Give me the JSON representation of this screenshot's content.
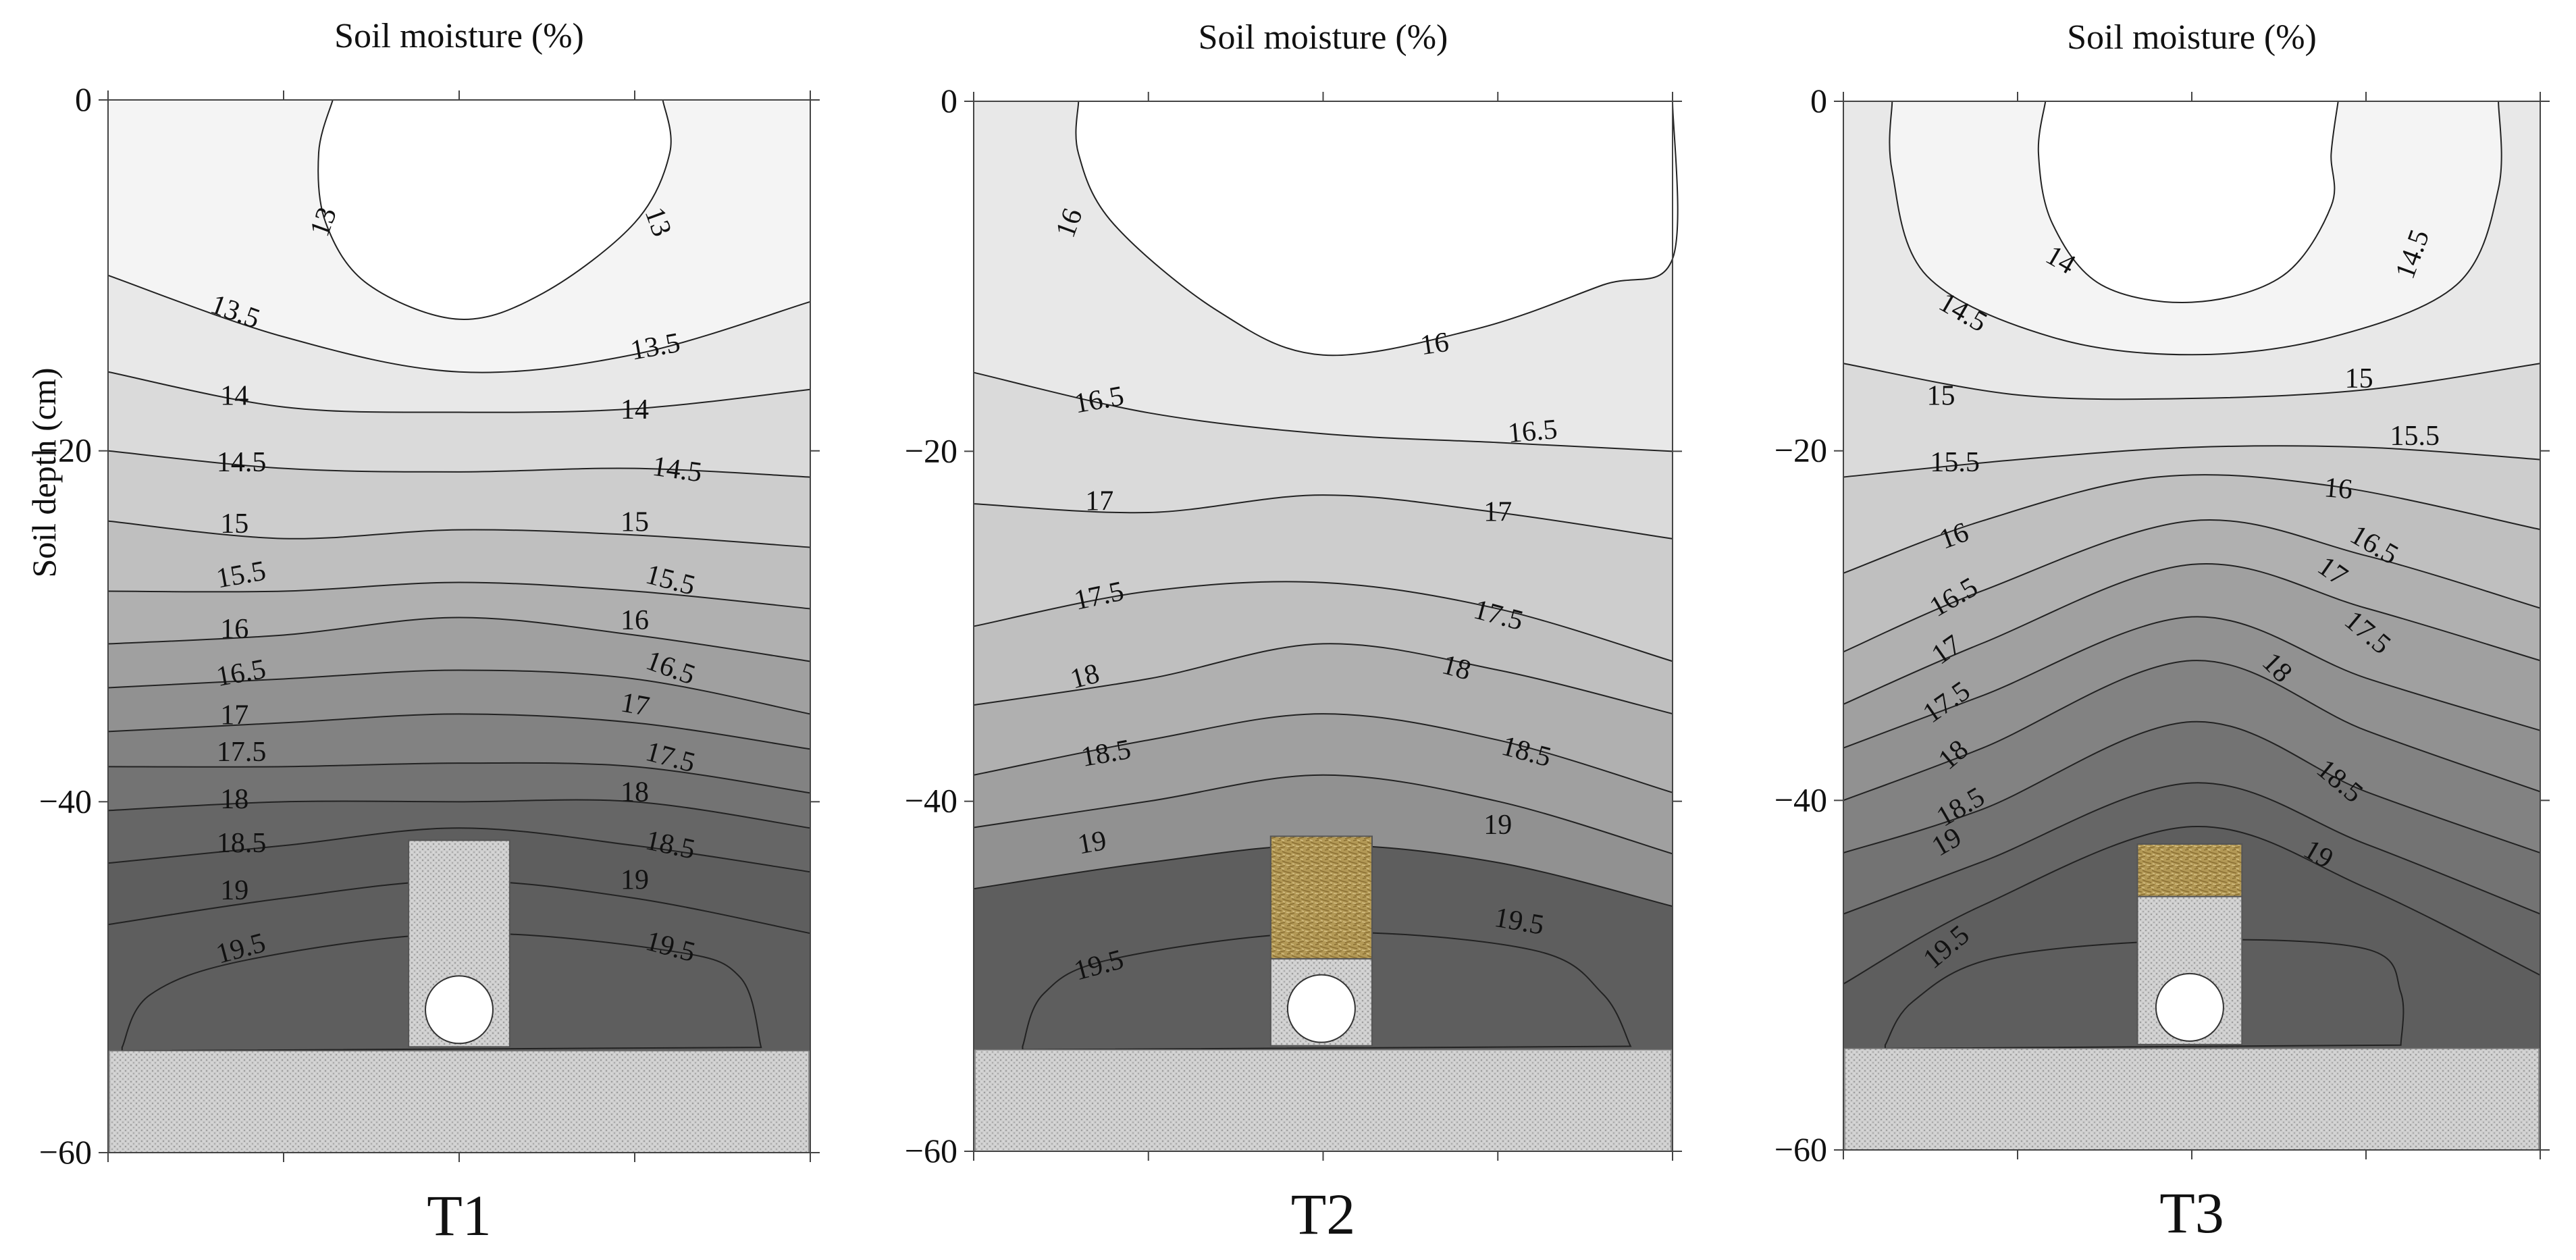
{
  "figure": {
    "ylabel": "Soil depth (cm)",
    "xlabel_top": "Soil moisture (%)",
    "yticks": [
      0,
      -20,
      -40,
      -60
    ],
    "ylim": [
      -60,
      0
    ]
  },
  "chart_data": [
    {
      "type": "contour",
      "panel": "T1",
      "title": "Soil moisture (%)",
      "xlabel": "T1",
      "ylabel": "Soil depth (cm)",
      "ylim": [
        -60,
        0
      ],
      "levels": [
        13,
        13.5,
        14,
        14.5,
        15,
        15.5,
        16,
        16.5,
        17,
        17.5,
        18,
        18.5,
        19,
        19.5
      ],
      "contour_labels": [
        {
          "text": "13"
        },
        {
          "text": "13"
        },
        {
          "text": "13.5"
        },
        {
          "text": "13.5"
        },
        {
          "text": "14"
        },
        {
          "text": "14"
        },
        {
          "text": "14.5"
        },
        {
          "text": "14.5"
        },
        {
          "text": "15"
        },
        {
          "text": "15"
        },
        {
          "text": "15.5"
        },
        {
          "text": "15.5"
        },
        {
          "text": "16"
        },
        {
          "text": "16"
        },
        {
          "text": "16.5"
        },
        {
          "text": "16.5"
        },
        {
          "text": "17"
        },
        {
          "text": "17"
        },
        {
          "text": "17.5"
        },
        {
          "text": "17.5"
        },
        {
          "text": "18"
        },
        {
          "text": "18"
        },
        {
          "text": "18.5"
        },
        {
          "text": "18.5"
        },
        {
          "text": "19"
        },
        {
          "text": "19"
        },
        {
          "text": "19.5"
        },
        {
          "text": "19.5"
        }
      ],
      "layer_description": "Gravel trench only"
    },
    {
      "type": "contour",
      "panel": "T2",
      "title": "Soil moisture (%)",
      "xlabel": "T2",
      "ylabel": "",
      "ylim": [
        -60,
        0
      ],
      "levels": [
        16,
        16.5,
        17,
        17.5,
        18,
        18.5,
        19,
        19.5
      ],
      "contour_labels": [
        {
          "text": "16"
        },
        {
          "text": "16"
        },
        {
          "text": "16.5"
        },
        {
          "text": "16.5"
        },
        {
          "text": "17"
        },
        {
          "text": "17"
        },
        {
          "text": "17.5"
        },
        {
          "text": "17.5"
        },
        {
          "text": "18"
        },
        {
          "text": "18"
        },
        {
          "text": "18.5"
        },
        {
          "text": "18.5"
        },
        {
          "text": "19"
        },
        {
          "text": "19"
        },
        {
          "text": "19.5"
        },
        {
          "text": "19.5"
        }
      ],
      "layer_description": "Straw layer over gravel trench"
    },
    {
      "type": "contour",
      "panel": "T3",
      "title": "Soil moisture (%)",
      "xlabel": "T3",
      "ylabel": "",
      "ylim": [
        -60,
        0
      ],
      "levels": [
        14,
        14.5,
        15,
        15.5,
        16,
        16.5,
        17,
        17.5,
        18,
        18.5,
        19,
        19.5
      ],
      "contour_labels": [
        {
          "text": "14"
        },
        {
          "text": "14.5"
        },
        {
          "text": "14.5"
        },
        {
          "text": "15"
        },
        {
          "text": "15"
        },
        {
          "text": "15.5"
        },
        {
          "text": "15.5"
        },
        {
          "text": "16"
        },
        {
          "text": "16"
        },
        {
          "text": "16.5"
        },
        {
          "text": "16.5"
        },
        {
          "text": "17"
        },
        {
          "text": "17"
        },
        {
          "text": "17.5"
        },
        {
          "text": "17.5"
        },
        {
          "text": "18"
        },
        {
          "text": "18"
        },
        {
          "text": "18.5"
        },
        {
          "text": "18.5"
        },
        {
          "text": "19"
        },
        {
          "text": "19"
        },
        {
          "text": "19.5"
        }
      ],
      "layer_description": "Thin straw layer over gravel trench"
    }
  ],
  "colors": {
    "c0": "#ffffff",
    "c1": "#f4f4f4",
    "c2": "#e8e8e8",
    "c3": "#dadada",
    "c4": "#cdcdcd",
    "c5": "#bfbfbf",
    "c6": "#b0b0b0",
    "c7": "#a0a0a0",
    "c8": "#919191",
    "c9": "#828282",
    "c10": "#737373",
    "c11": "#666666",
    "c12": "#5e5e5e",
    "line": "#222222",
    "gravel": "#c9c9c9",
    "straw": "#b49a55"
  }
}
